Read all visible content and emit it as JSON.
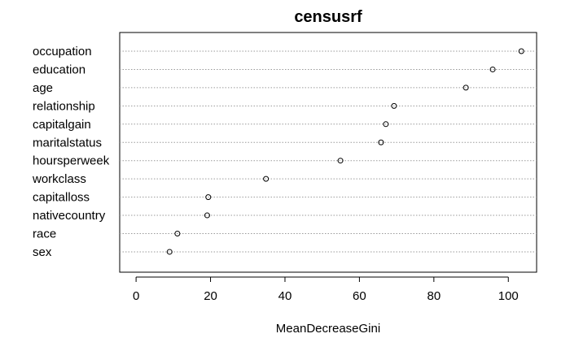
{
  "chart_data": {
    "type": "scatter",
    "title": "censusrf",
    "xlabel": "MeanDecreaseGini",
    "ylabel": "",
    "xlim": [
      -4.4,
      107.6
    ],
    "xticks": [
      0,
      20,
      40,
      60,
      80,
      100
    ],
    "grid": "dotted horizontal lines per variable",
    "categories": [
      "occupation",
      "education",
      "age",
      "relationship",
      "capitalgain",
      "maritalstatus",
      "hoursperweek",
      "workclass",
      "capitalloss",
      "nativecountry",
      "race",
      "sex"
    ],
    "values": [
      103.5,
      95.8,
      88.6,
      69.3,
      67.1,
      65.8,
      54.9,
      34.9,
      19.4,
      19.1,
      11.1,
      9.0
    ]
  }
}
